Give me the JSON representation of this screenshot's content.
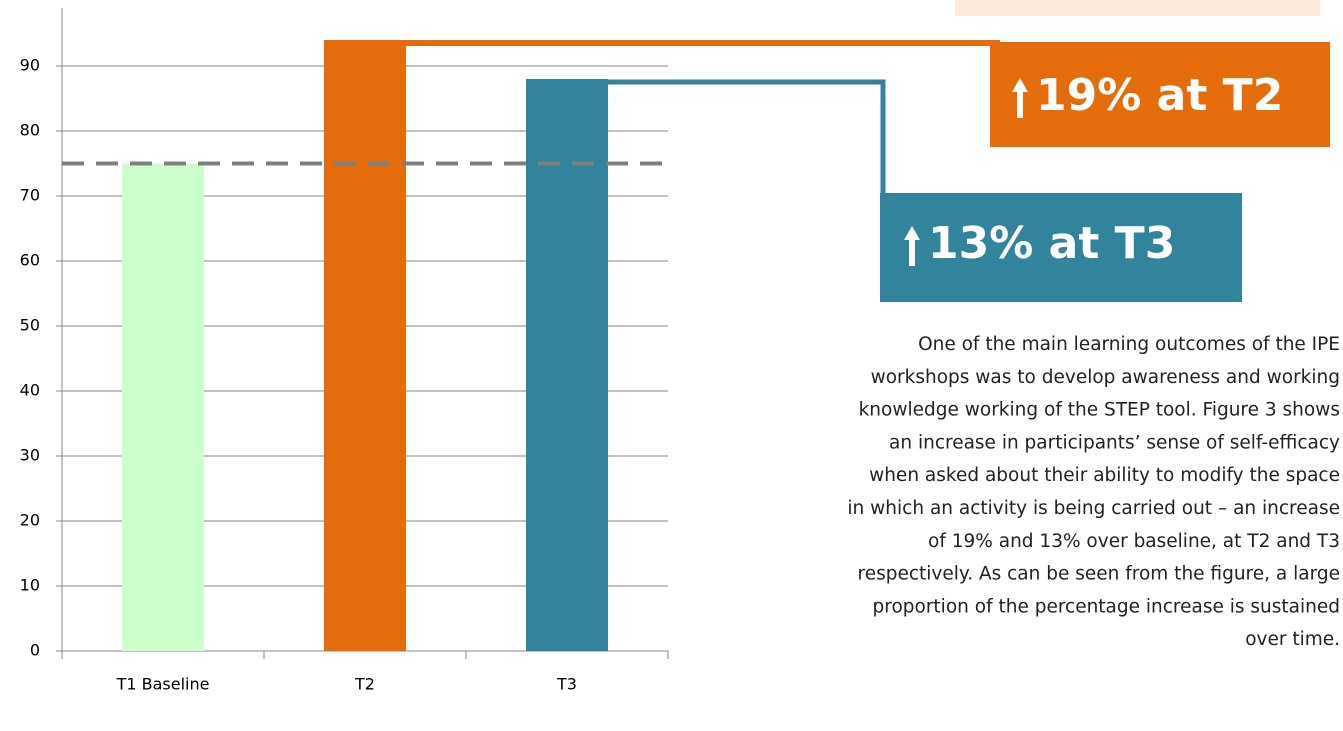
{
  "chart_data": {
    "type": "bar",
    "categories": [
      "T1 Baseline",
      "T2",
      "T3"
    ],
    "values": [
      75,
      94,
      88
    ],
    "colors": [
      "#ccffcc",
      "#e46c0a",
      "#31849b"
    ],
    "reference_line": 75,
    "reference_color": "#808080",
    "ylim": [
      0,
      100
    ],
    "yticks": [
      0,
      10,
      20,
      30,
      40,
      50,
      60,
      70,
      80,
      90
    ],
    "grid": true,
    "annotations": [
      "19% at T2",
      "13% at T3"
    ],
    "paragraph": [
      "One of the main learning outcomes of the IPE",
      "workshops was to develop awareness and working",
      "knowledge working of the STEP tool. Figure 3 shows",
      "an increase in participants’ sense of self-efficacy",
      "when asked about their ability to modify the space",
      "in which an activity is being carried out – an increase",
      "of 19% and 13% over baseline, at T2 and T3",
      "respectively. As can be seen from the figure, a large",
      "proportion of the percentage increase is sustained",
      "over time."
    ]
  }
}
